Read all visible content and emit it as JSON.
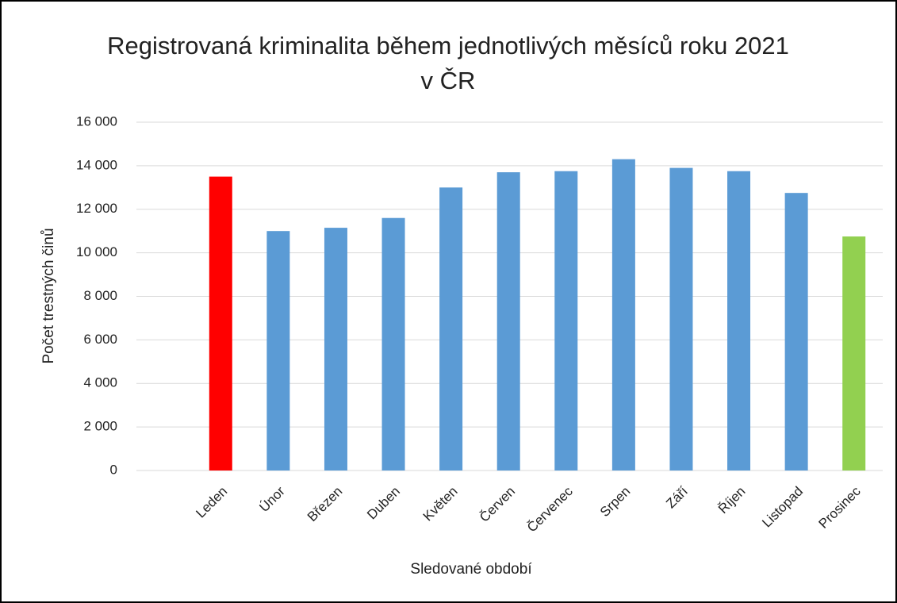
{
  "chart_data": {
    "type": "bar",
    "title": "Registrovaná kriminalita během jednotlivých měsíců roku 2021 v ČR",
    "xlabel": "Sledované období",
    "ylabel": "Počet trestných činů",
    "categories": [
      "Leden",
      "Únor",
      "Březen",
      "Duben",
      "Květen",
      "Červen",
      "Červenec",
      "Srpen",
      "Září",
      "Říjen",
      "Listopad",
      "Prosinec"
    ],
    "values": [
      13500,
      11000,
      11150,
      11600,
      13000,
      13700,
      13750,
      14300,
      13900,
      13750,
      12750,
      10750
    ],
    "colors": [
      "#ff0000",
      "#5b9bd5",
      "#5b9bd5",
      "#5b9bd5",
      "#5b9bd5",
      "#5b9bd5",
      "#5b9bd5",
      "#5b9bd5",
      "#5b9bd5",
      "#5b9bd5",
      "#5b9bd5",
      "#92d050"
    ],
    "ylim": [
      0,
      16000
    ],
    "yticks": [
      0,
      {
        "value": 2000,
        "label": "2 000"
      },
      {
        "value": 4000,
        "label": "4 000"
      },
      {
        "value": 6000,
        "label": "6 000"
      },
      {
        "value": 8000,
        "label": "8 000"
      },
      {
        "value": 10000,
        "label": "10 000"
      },
      {
        "value": 12000,
        "label": "12 000"
      },
      {
        "value": 14000,
        "label": "14 000"
      },
      {
        "value": 16000,
        "label": "16 000"
      }
    ],
    "grid": true
  }
}
